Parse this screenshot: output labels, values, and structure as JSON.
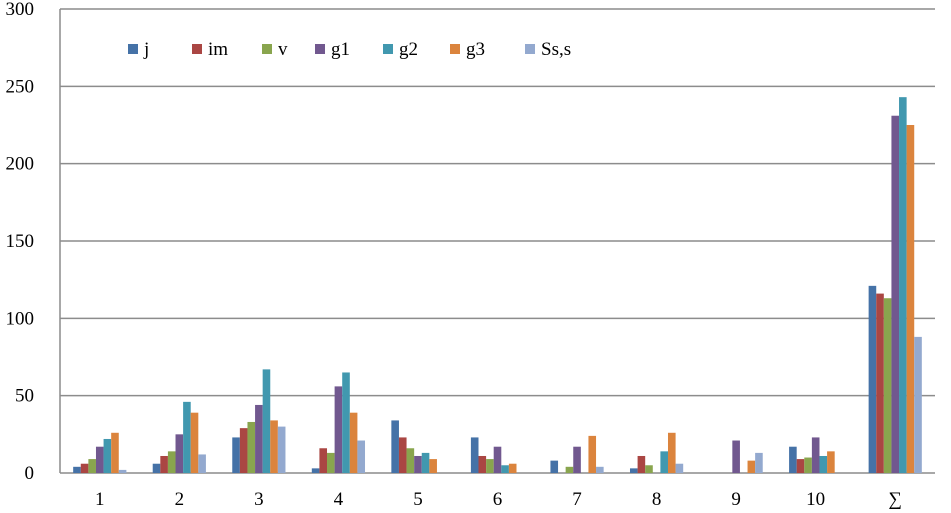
{
  "chart_data": {
    "type": "bar",
    "title": "",
    "xlabel": "",
    "ylabel": "",
    "ylim": [
      0,
      300
    ],
    "yticks": [
      0,
      50,
      100,
      150,
      200,
      250,
      300
    ],
    "grid": true,
    "legend_placement": "top-left",
    "categories": [
      "1",
      "2",
      "3",
      "4",
      "5",
      "6",
      "7",
      "8",
      "9",
      "10",
      "∑"
    ],
    "series": [
      {
        "name": "j",
        "color": "#4572a7",
        "values": [
          4,
          6,
          23,
          3,
          34,
          23,
          8,
          3,
          0,
          17,
          121
        ]
      },
      {
        "name": "im",
        "color": "#aa4643",
        "values": [
          6,
          11,
          29,
          16,
          23,
          11,
          0,
          11,
          0,
          9,
          116
        ]
      },
      {
        "name": "v",
        "color": "#89a54e",
        "values": [
          9,
          14,
          33,
          13,
          16,
          9,
          4,
          5,
          0,
          10,
          113
        ]
      },
      {
        "name": "g1",
        "color": "#71588f",
        "values": [
          17,
          25,
          44,
          56,
          11,
          17,
          17,
          0,
          21,
          23,
          231
        ]
      },
      {
        "name": "g2",
        "color": "#4198af",
        "values": [
          22,
          46,
          67,
          65,
          13,
          5,
          0,
          14,
          0,
          11,
          243
        ]
      },
      {
        "name": "g3",
        "color": "#db843d",
        "values": [
          26,
          39,
          34,
          39,
          9,
          6,
          24,
          26,
          8,
          14,
          225
        ]
      },
      {
        "name": "Ss,s",
        "color": "#93a9cf",
        "values": [
          2,
          12,
          30,
          21,
          0,
          0,
          4,
          6,
          13,
          0,
          88
        ]
      }
    ]
  }
}
